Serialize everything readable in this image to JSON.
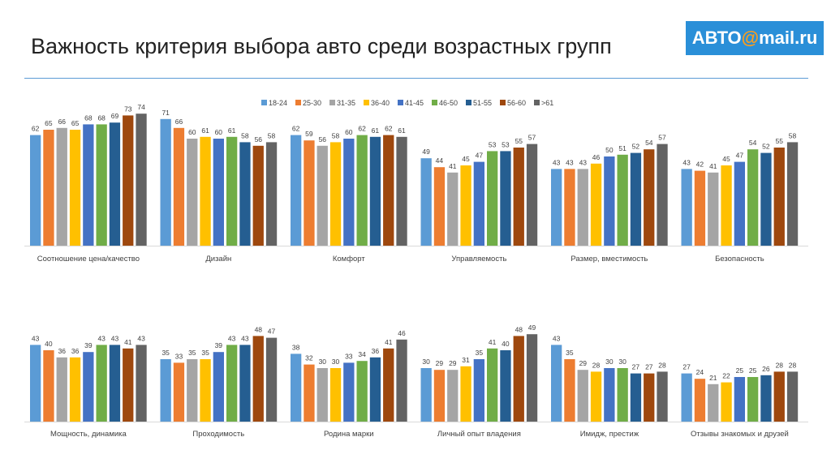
{
  "header": {
    "title": "Важность критерия выбора авто среди возрастных групп",
    "logo": {
      "prefix": "АВТО",
      "at": "@",
      "suffix": "mail.ru"
    }
  },
  "colors": [
    "#5b9bd5",
    "#ed7d31",
    "#a5a5a5",
    "#ffc000",
    "#4472c4",
    "#70ad47",
    "#255e91",
    "#9e480e",
    "#636363"
  ],
  "chart_data": {
    "type": "bar",
    "title": "",
    "legend": {
      "placement": "top",
      "entries": [
        "18-24",
        "25-30",
        "31-35",
        "36-40",
        "41-45",
        "46-50",
        "51-55",
        "56-60",
        ">61"
      ]
    },
    "ylim": [
      0,
      80
    ],
    "grid": false,
    "panels": [
      {
        "categories": [
          "Соотношение цена/качество",
          "Дизайн",
          "Комфорт",
          "Управляемость",
          "Размер, вместимость",
          "Безопасность"
        ],
        "series": [
          {
            "name": "18-24",
            "values": [
              62,
              71,
              62,
              49,
              43,
              43
            ]
          },
          {
            "name": "25-30",
            "values": [
              65,
              66,
              59,
              44,
              43,
              42
            ]
          },
          {
            "name": "31-35",
            "values": [
              66,
              60,
              56,
              41,
              43,
              41
            ]
          },
          {
            "name": "36-40",
            "values": [
              65,
              61,
              58,
              45,
              46,
              45
            ]
          },
          {
            "name": "41-45",
            "values": [
              68,
              60,
              60,
              47,
              50,
              47
            ]
          },
          {
            "name": "46-50",
            "values": [
              68,
              61,
              62,
              53,
              51,
              54
            ]
          },
          {
            "name": "51-55",
            "values": [
              69,
              58,
              61,
              53,
              52,
              52
            ]
          },
          {
            "name": "56-60",
            "values": [
              73,
              56,
              62,
              55,
              54,
              55
            ]
          },
          {
            "name": ">61",
            "values": [
              74,
              58,
              61,
              57,
              57,
              58
            ]
          }
        ]
      },
      {
        "categories": [
          "Мощность, динамика",
          "Проходимость",
          "Родина марки",
          "Личный опыт владения",
          "Имидж, престиж",
          "Отзывы знакомых и друзей"
        ],
        "series": [
          {
            "name": "18-24",
            "values": [
              43,
              35,
              38,
              30,
              43,
              27
            ]
          },
          {
            "name": "25-30",
            "values": [
              40,
              33,
              32,
              29,
              35,
              24
            ]
          },
          {
            "name": "31-35",
            "values": [
              36,
              35,
              30,
              29,
              29,
              21
            ]
          },
          {
            "name": "36-40",
            "values": [
              36,
              35,
              30,
              31,
              28,
              22
            ]
          },
          {
            "name": "41-45",
            "values": [
              39,
              39,
              33,
              35,
              30,
              25
            ]
          },
          {
            "name": "46-50",
            "values": [
              43,
              43,
              34,
              41,
              30,
              25
            ]
          },
          {
            "name": "51-55",
            "values": [
              43,
              43,
              36,
              40,
              27,
              26
            ]
          },
          {
            "name": "56-60",
            "values": [
              41,
              48,
              41,
              48,
              27,
              28
            ]
          },
          {
            "name": ">61",
            "values": [
              43,
              47,
              46,
              49,
              28,
              28
            ]
          }
        ]
      }
    ]
  }
}
